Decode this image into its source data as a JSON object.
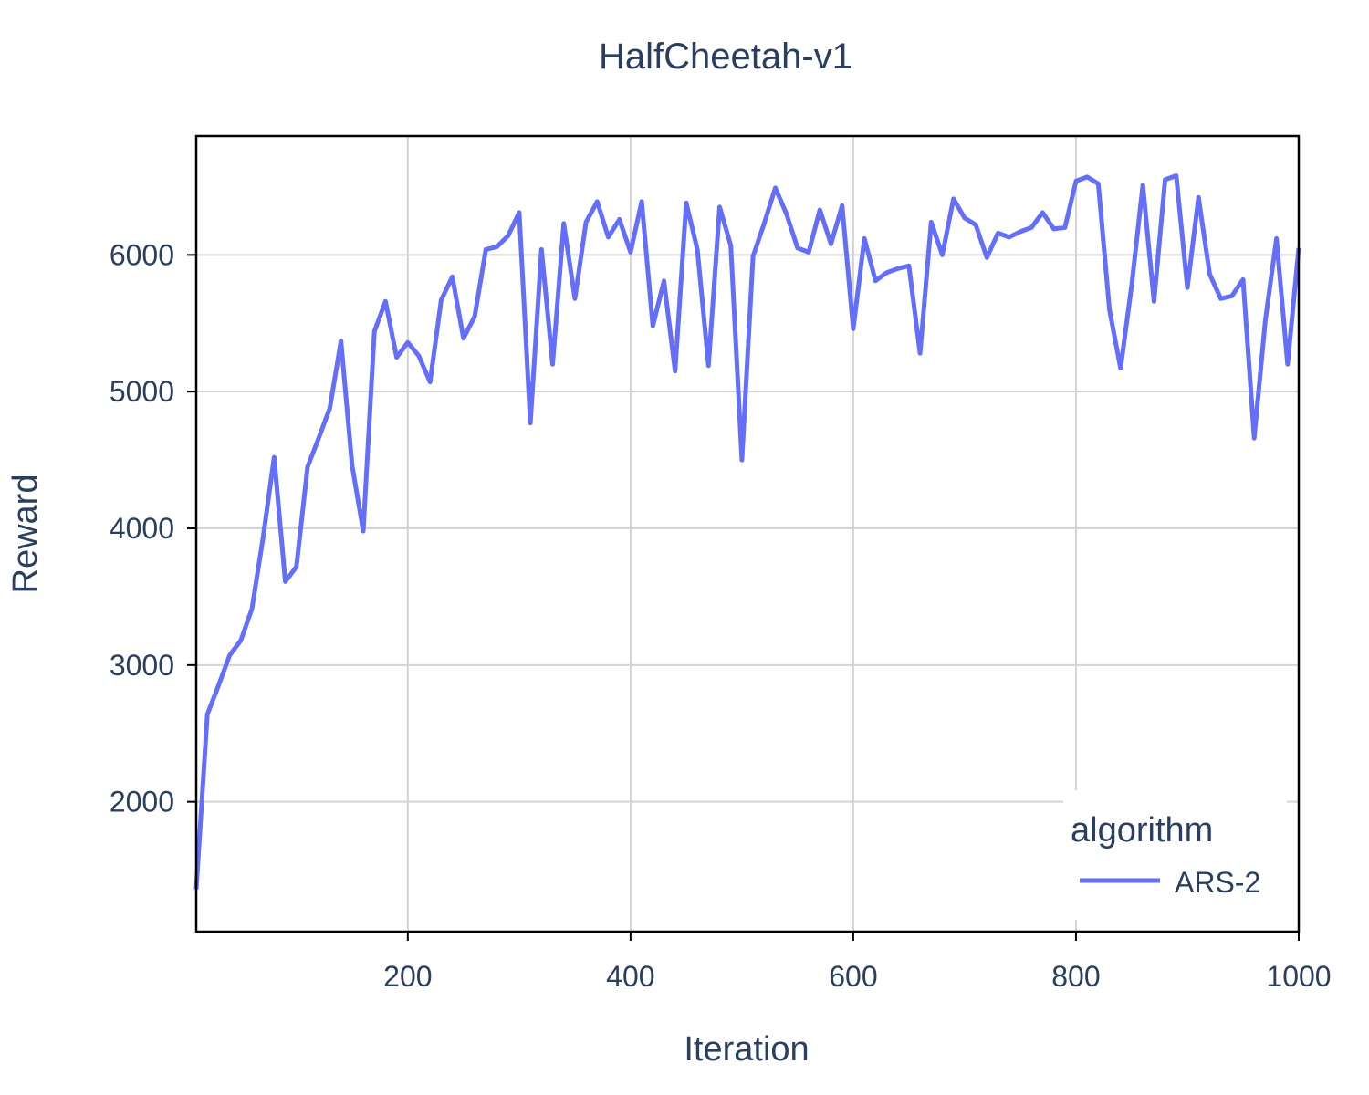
{
  "chart_data": {
    "type": "line",
    "title": "HalfCheetah-v1",
    "xlabel": "Iteration",
    "ylabel": "Reward",
    "xlim": [
      10,
      1000
    ],
    "ylim": [
      1050,
      6870
    ],
    "xticks": [
      200,
      400,
      600,
      800,
      1000
    ],
    "yticks": [
      2000,
      3000,
      4000,
      5000,
      6000
    ],
    "grid": true,
    "legend": {
      "title": "algorithm",
      "placement": "bottom-right",
      "entries": [
        "ARS-2"
      ]
    },
    "series": [
      {
        "name": "ARS-2",
        "color": "#636efa",
        "x": [
          10,
          20,
          30,
          40,
          50,
          60,
          70,
          80,
          90,
          100,
          110,
          120,
          130,
          140,
          150,
          160,
          170,
          180,
          190,
          200,
          210,
          220,
          230,
          240,
          250,
          260,
          270,
          280,
          290,
          300,
          310,
          320,
          330,
          340,
          350,
          360,
          370,
          380,
          390,
          400,
          410,
          420,
          430,
          440,
          450,
          460,
          470,
          480,
          490,
          500,
          510,
          520,
          530,
          540,
          550,
          560,
          570,
          580,
          590,
          600,
          610,
          620,
          630,
          640,
          650,
          660,
          670,
          680,
          690,
          700,
          710,
          720,
          730,
          740,
          750,
          760,
          770,
          780,
          790,
          800,
          810,
          820,
          830,
          840,
          850,
          860,
          870,
          880,
          890,
          900,
          910,
          920,
          930,
          940,
          950,
          960,
          970,
          980,
          990,
          1000
        ],
        "y": [
          1360,
          2640,
          2850,
          3070,
          3180,
          3410,
          3930,
          4520,
          3610,
          3720,
          4450,
          4660,
          4880,
          5370,
          4460,
          3980,
          5440,
          5660,
          5250,
          5360,
          5260,
          5070,
          5670,
          5840,
          5390,
          5550,
          6040,
          6060,
          6140,
          6310,
          4770,
          6040,
          5200,
          6230,
          5680,
          6240,
          6390,
          6130,
          6260,
          6020,
          6390,
          5480,
          5810,
          5150,
          6380,
          6040,
          5190,
          6350,
          6070,
          4500,
          5990,
          6230,
          6490,
          6300,
          6050,
          6020,
          6330,
          6080,
          6360,
          5460,
          6120,
          5810,
          5870,
          5900,
          5920,
          5280,
          6240,
          6000,
          6410,
          6270,
          6220,
          5980,
          6160,
          6130,
          6170,
          6200,
          6310,
          6190,
          6200,
          6540,
          6570,
          6520,
          5600,
          5170,
          5780,
          6510,
          5660,
          6550,
          6580,
          5760,
          6420,
          5860,
          5680,
          5700,
          5820,
          4660,
          5520,
          6120,
          5200,
          6050
        ]
      }
    ]
  }
}
